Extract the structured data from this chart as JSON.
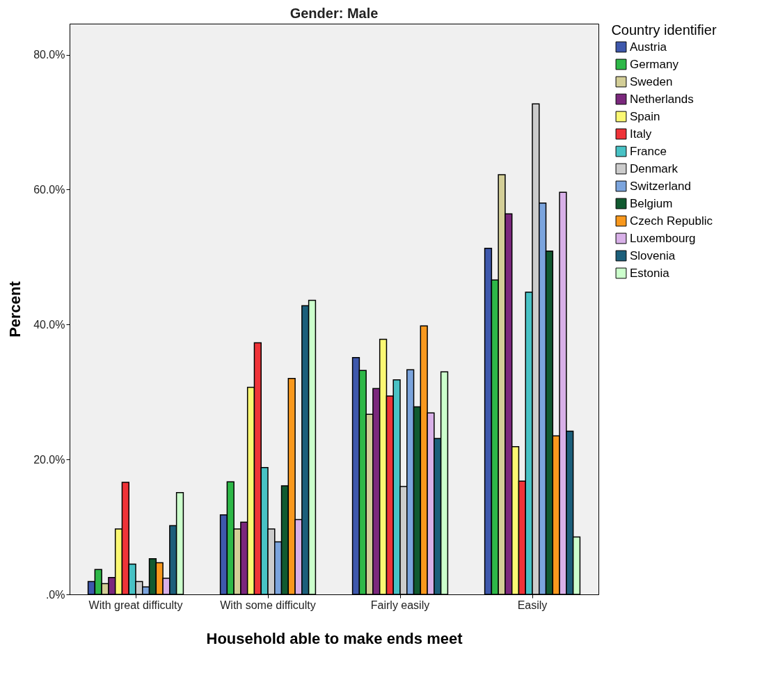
{
  "chart_data": {
    "type": "bar",
    "title": "Gender: Male",
    "xlabel": "Household able to make ends meet",
    "ylabel": "Percent",
    "legend_title": "Country identifier",
    "categories": [
      "With great difficulty",
      "With some difficulty",
      "Fairly easily",
      "Easily"
    ],
    "series": [
      {
        "name": "Austria",
        "color": "#3e58ac",
        "values": [
          1.9,
          11.8,
          35.1,
          51.3
        ]
      },
      {
        "name": "Germany",
        "color": "#2eb848",
        "values": [
          3.7,
          16.7,
          33.2,
          46.6
        ]
      },
      {
        "name": "Sweden",
        "color": "#d3ce97",
        "values": [
          1.6,
          9.7,
          26.7,
          62.2
        ]
      },
      {
        "name": "Netherlands",
        "color": "#7b287d",
        "values": [
          2.5,
          10.7,
          30.5,
          56.4
        ]
      },
      {
        "name": "Spain",
        "color": "#fbf873",
        "values": [
          9.7,
          30.7,
          37.8,
          21.9
        ]
      },
      {
        "name": "Italy",
        "color": "#ef3338",
        "values": [
          16.6,
          37.3,
          29.4,
          16.8
        ]
      },
      {
        "name": "France",
        "color": "#48c2c5",
        "values": [
          4.5,
          18.8,
          31.8,
          44.8
        ]
      },
      {
        "name": "Denmark",
        "color": "#cccccc",
        "values": [
          1.9,
          9.7,
          16.0,
          72.7
        ]
      },
      {
        "name": "Switzerland",
        "color": "#7ba4dd",
        "values": [
          1.1,
          7.8,
          33.3,
          58.0
        ]
      },
      {
        "name": "Belgium",
        "color": "#115a30",
        "values": [
          5.3,
          16.1,
          27.8,
          50.9
        ]
      },
      {
        "name": "Czech Republic",
        "color": "#f8981d",
        "values": [
          4.7,
          32.0,
          39.8,
          23.5
        ]
      },
      {
        "name": "Luxembourg",
        "color": "#d8b0e8",
        "values": [
          2.4,
          11.1,
          26.9,
          59.6
        ]
      },
      {
        "name": "Slovenia",
        "color": "#1c5f7b",
        "values": [
          10.2,
          42.8,
          23.1,
          24.2
        ]
      },
      {
        "name": "Estonia",
        "color": "#ccffcc",
        "values": [
          15.1,
          43.6,
          33.0,
          8.5
        ]
      }
    ],
    "ylim": [
      0,
      84.6
    ],
    "yticks": [
      {
        "value": 0,
        "label": ".0%"
      },
      {
        "value": 20,
        "label": "20.0%"
      },
      {
        "value": 40,
        "label": "40.0%"
      },
      {
        "value": 60,
        "label": "60.0%"
      },
      {
        "value": 80,
        "label": "80.0%"
      }
    ],
    "grid": false,
    "legend": "right"
  }
}
